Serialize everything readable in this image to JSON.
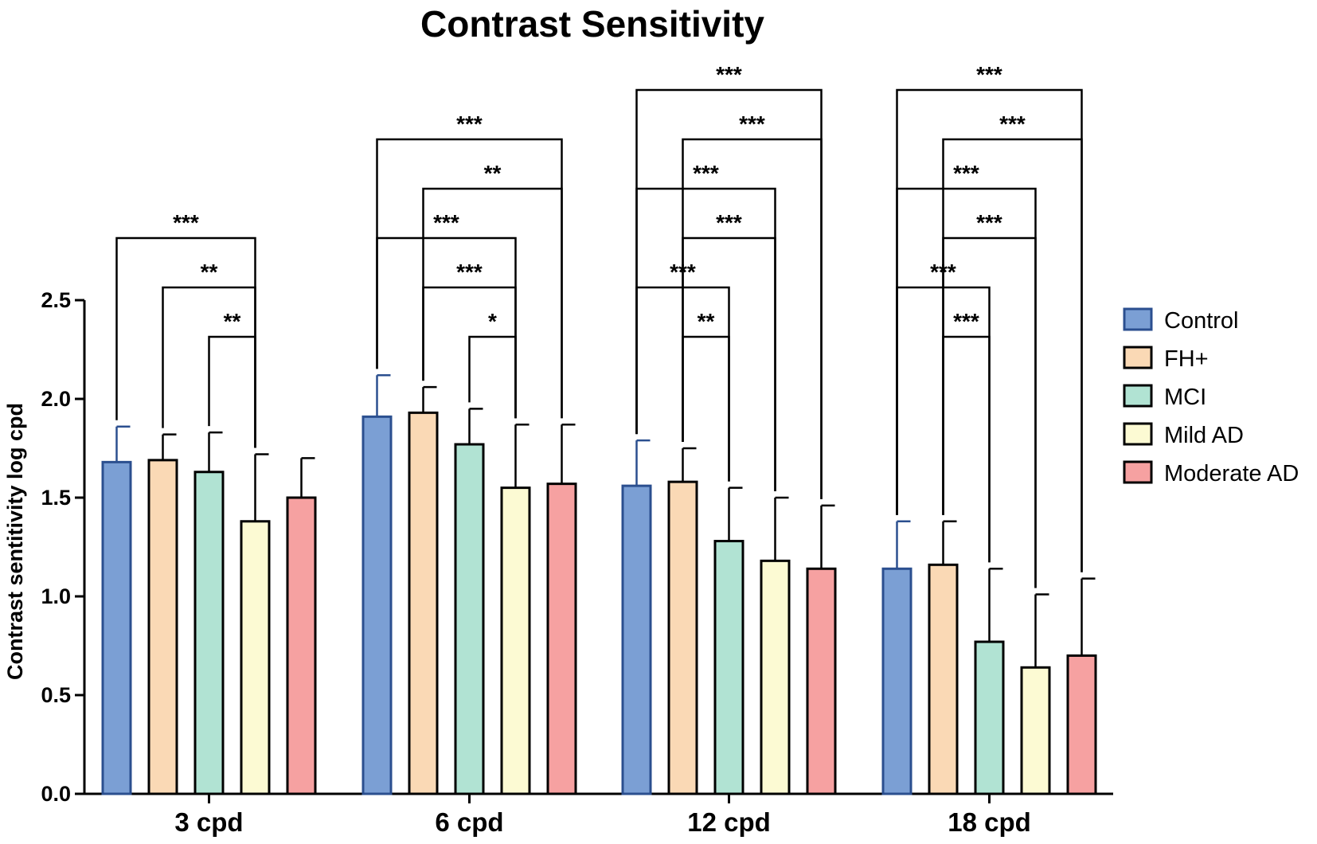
{
  "chart_data": {
    "type": "bar",
    "title": "Contrast Sensitivity",
    "xlabel": "",
    "ylabel": "Contrast sentitivity log cpd",
    "ylim": [
      0,
      2.5
    ],
    "yticks": [
      "0.0",
      "0.5",
      "1.0",
      "1.5",
      "2.0",
      "2.5"
    ],
    "categories": [
      "3 cpd",
      "6 cpd",
      "12 cpd",
      "18 cpd"
    ],
    "series": [
      {
        "name": "Control",
        "color": "#7b9fd4",
        "edge": "#2b4f8f",
        "values": [
          1.68,
          1.91,
          1.56,
          1.14
        ],
        "errors": [
          0.18,
          0.21,
          0.23,
          0.24
        ]
      },
      {
        "name": "FH+",
        "color": "#fad9b5",
        "edge": "#000000",
        "values": [
          1.69,
          1.93,
          1.58,
          1.16
        ],
        "errors": [
          0.13,
          0.13,
          0.17,
          0.22
        ]
      },
      {
        "name": "MCI",
        "color": "#b1e3d3",
        "edge": "#000000",
        "values": [
          1.63,
          1.77,
          1.28,
          0.77
        ],
        "errors": [
          0.2,
          0.18,
          0.27,
          0.37
        ]
      },
      {
        "name": "Mild AD",
        "color": "#fcfad3",
        "edge": "#000000",
        "values": [
          1.38,
          1.55,
          1.18,
          0.64
        ],
        "errors": [
          0.34,
          0.32,
          0.32,
          0.37
        ]
      },
      {
        "name": "Moderate AD",
        "color": "#f6a1a1",
        "edge": "#000000",
        "values": [
          1.5,
          1.57,
          1.14,
          0.7
        ],
        "errors": [
          0.2,
          0.3,
          0.32,
          0.39
        ]
      }
    ],
    "legend_position": "right",
    "significance": [
      {
        "category": 0,
        "from": 0,
        "to": 3,
        "label": "***"
      },
      {
        "category": 0,
        "from": 1,
        "to": 3,
        "label": "**"
      },
      {
        "category": 0,
        "from": 2,
        "to": 3,
        "label": "**"
      },
      {
        "category": 1,
        "from": 0,
        "to": 4,
        "label": "***"
      },
      {
        "category": 1,
        "from": 1,
        "to": 4,
        "label": "**"
      },
      {
        "category": 1,
        "from": 0,
        "to": 3,
        "label": "***"
      },
      {
        "category": 1,
        "from": 1,
        "to": 3,
        "label": "***"
      },
      {
        "category": 1,
        "from": 2,
        "to": 3,
        "label": "*"
      },
      {
        "category": 2,
        "from": 0,
        "to": 4,
        "label": "***"
      },
      {
        "category": 2,
        "from": 1,
        "to": 4,
        "label": "***"
      },
      {
        "category": 2,
        "from": 0,
        "to": 3,
        "label": "***"
      },
      {
        "category": 2,
        "from": 1,
        "to": 3,
        "label": "***"
      },
      {
        "category": 2,
        "from": 0,
        "to": 2,
        "label": "***"
      },
      {
        "category": 2,
        "from": 1,
        "to": 2,
        "label": "**"
      },
      {
        "category": 3,
        "from": 0,
        "to": 4,
        "label": "***"
      },
      {
        "category": 3,
        "from": 0,
        "to": 3,
        "label": "***"
      },
      {
        "category": 3,
        "from": 1,
        "to": 4,
        "label": "***"
      },
      {
        "category": 3,
        "from": 1,
        "to": 3,
        "label": "***"
      },
      {
        "category": 3,
        "from": 0,
        "to": 2,
        "label": "***"
      },
      {
        "category": 3,
        "from": 1,
        "to": 2,
        "label": "***"
      }
    ]
  }
}
